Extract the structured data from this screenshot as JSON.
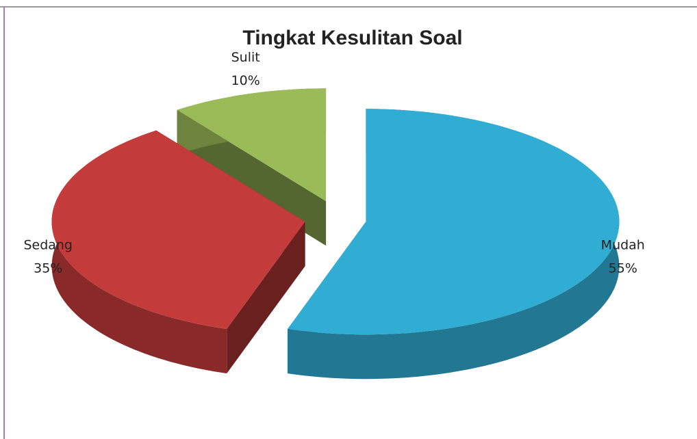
{
  "chart_data": {
    "type": "pie",
    "title": "Tingkat Kesulitan Soal",
    "categories": [
      "Mudah",
      "Sedang",
      "Sulit"
    ],
    "values": [
      55,
      35,
      10
    ],
    "value_labels": [
      "55%",
      "35%",
      "10%"
    ],
    "colors": [
      "#31acd2",
      "#c33b3a",
      "#9bbb59"
    ]
  }
}
